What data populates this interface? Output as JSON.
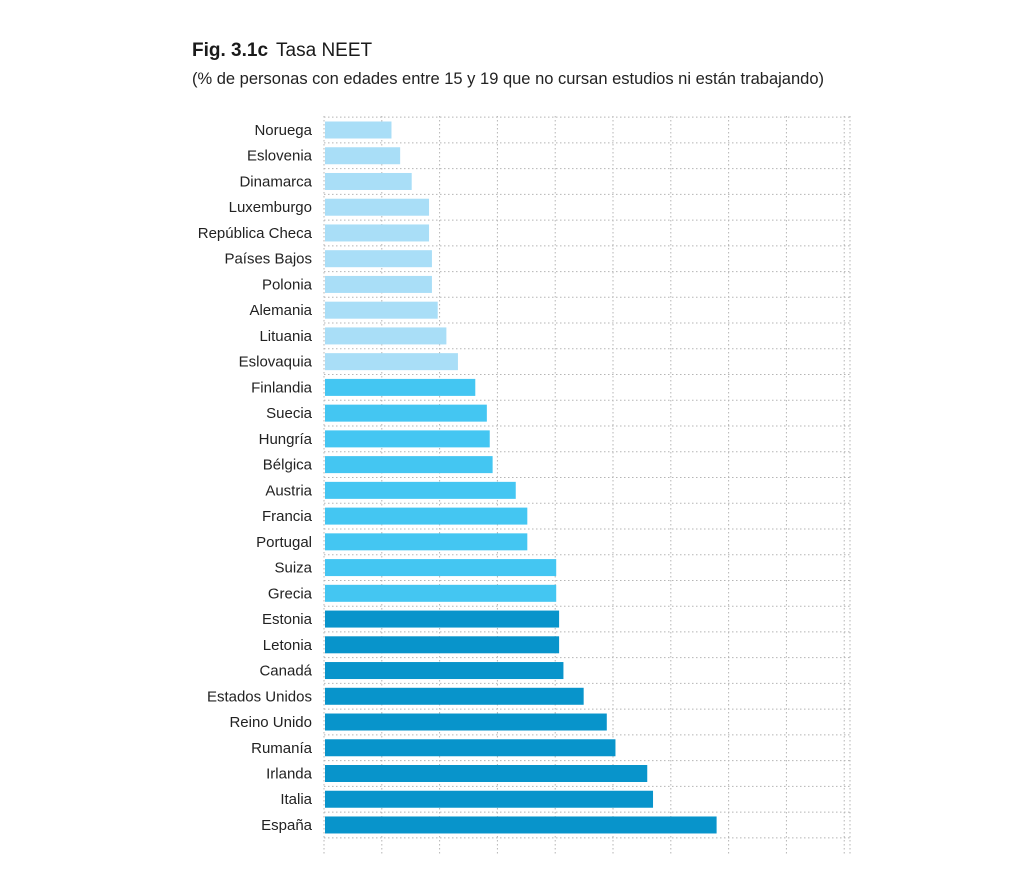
{
  "header": {
    "fig_label": "Fig. 3.1c",
    "title": "Tasa NEET",
    "subtitle": "(% de personas con edades entre 15 y 19 que no cursan estudios ni están trabajando)"
  },
  "colors": {
    "tier_light": "#a9def7",
    "tier_mid": "#44c6f2",
    "tier_dark": "#0894cb",
    "grid": "#b5b5b5"
  },
  "chart_data": {
    "type": "bar",
    "orientation": "horizontal",
    "title": "Tasa NEET",
    "subtitle": "(% de personas con edades entre 15 y 19 que no cursan estudios ni están trabajando)",
    "categories": [
      "Noruega",
      "Eslovenia",
      "Dinamarca",
      "Luxemburgo",
      "República Checa",
      "Países Bajos",
      "Polonia",
      "Alemania",
      "Lituania",
      "Eslovaquia",
      "Finlandia",
      "Suecia",
      "Hungría",
      "Bélgica",
      "Austria",
      "Francia",
      "Portugal",
      "Suiza",
      "Grecia",
      "Estonia",
      "Letonia",
      "Canadá",
      "Estados Unidos",
      "Reino Unido",
      "Rumanía",
      "Irlanda",
      "Italia",
      "España"
    ],
    "values": [
      2.3,
      2.6,
      3.0,
      3.6,
      3.6,
      3.7,
      3.7,
      3.9,
      4.2,
      4.6,
      5.2,
      5.6,
      5.7,
      5.8,
      6.6,
      7.0,
      7.0,
      8.0,
      8.0,
      8.1,
      8.1,
      8.25,
      8.95,
      9.75,
      10.05,
      11.15,
      11.35,
      13.55
    ],
    "tiers": [
      "light",
      "light",
      "light",
      "light",
      "light",
      "light",
      "light",
      "light",
      "light",
      "light",
      "mid",
      "mid",
      "mid",
      "mid",
      "mid",
      "mid",
      "mid",
      "mid",
      "mid",
      "dark",
      "dark",
      "dark",
      "dark",
      "dark",
      "dark",
      "dark",
      "dark",
      "dark"
    ],
    "xlim": [
      0,
      18.2
    ],
    "grid_step": 2,
    "grid": true,
    "tick_labels_shown": false
  }
}
